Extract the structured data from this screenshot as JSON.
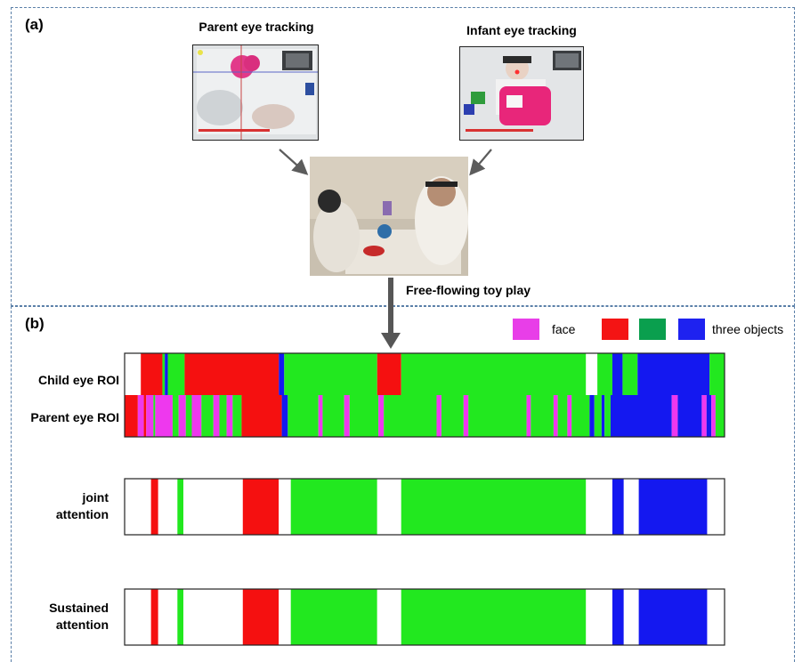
{
  "panels": {
    "a_label": "(a)",
    "b_label": "(b)"
  },
  "photos": {
    "parent_title": "Parent eye tracking",
    "infant_title": "Infant eye tracking",
    "caption": "Free-flowing toy play"
  },
  "legend": {
    "items": [
      {
        "label": "face",
        "color": "#e83ee8"
      },
      {
        "label": "",
        "color": "#f41414"
      },
      {
        "label": "",
        "color": "#0a9f4e"
      },
      {
        "label": "three objects",
        "color": "#1e22f0"
      }
    ]
  },
  "colors": {
    "face": "#ee38ee",
    "red": "#f51010",
    "green": "#22e81f",
    "blue": "#1418f0",
    "white": "#ffffff"
  },
  "rows": {
    "child": "Child eye ROI",
    "parent": "Parent eye ROI",
    "joint": [
      "joint",
      "attention"
    ],
    "sustained": [
      "Sustained",
      "attention"
    ]
  },
  "timeline_data": {
    "child_eye_roi": [
      [
        "white",
        0.0,
        0.027
      ],
      [
        "red",
        0.027,
        0.063
      ],
      [
        "green",
        0.063,
        0.067
      ],
      [
        "blue",
        0.067,
        0.072
      ],
      [
        "green",
        0.072,
        0.1
      ],
      [
        "red",
        0.1,
        0.257
      ],
      [
        "blue",
        0.257,
        0.266
      ],
      [
        "green",
        0.266,
        0.421
      ],
      [
        "red",
        0.421,
        0.461
      ],
      [
        "green",
        0.461,
        0.769
      ],
      [
        "white",
        0.769,
        0.788
      ],
      [
        "green",
        0.788,
        0.813
      ],
      [
        "blue",
        0.813,
        0.83
      ],
      [
        "green",
        0.83,
        0.855
      ],
      [
        "blue",
        0.855,
        0.975
      ],
      [
        "green",
        0.975,
        1.0
      ]
    ],
    "parent_eye_roi": [
      [
        "red",
        0.0,
        0.022
      ],
      [
        "face",
        0.022,
        0.032
      ],
      [
        "red",
        0.032,
        0.036
      ],
      [
        "face",
        0.036,
        0.048
      ],
      [
        "green",
        0.048,
        0.051
      ],
      [
        "face",
        0.051,
        0.08
      ],
      [
        "green",
        0.08,
        0.09
      ],
      [
        "face",
        0.09,
        0.102
      ],
      [
        "green",
        0.102,
        0.112
      ],
      [
        "face",
        0.112,
        0.128
      ],
      [
        "green",
        0.128,
        0.148
      ],
      [
        "face",
        0.148,
        0.158
      ],
      [
        "green",
        0.158,
        0.17
      ],
      [
        "face",
        0.17,
        0.18
      ],
      [
        "green",
        0.18,
        0.195
      ],
      [
        "red",
        0.195,
        0.262
      ],
      [
        "blue",
        0.262,
        0.272
      ],
      [
        "green",
        0.272,
        0.323
      ],
      [
        "face",
        0.323,
        0.33
      ],
      [
        "green",
        0.33,
        0.366
      ],
      [
        "face",
        0.366,
        0.375
      ],
      [
        "green",
        0.375,
        0.423
      ],
      [
        "face",
        0.423,
        0.432
      ],
      [
        "green",
        0.432,
        0.52
      ],
      [
        "face",
        0.52,
        0.528
      ],
      [
        "green",
        0.528,
        0.565
      ],
      [
        "face",
        0.565,
        0.573
      ],
      [
        "green",
        0.573,
        0.67
      ],
      [
        "face",
        0.67,
        0.677
      ],
      [
        "green",
        0.677,
        0.715
      ],
      [
        "face",
        0.715,
        0.722
      ],
      [
        "green",
        0.722,
        0.738
      ],
      [
        "face",
        0.738,
        0.745
      ],
      [
        "green",
        0.745,
        0.775
      ],
      [
        "blue",
        0.775,
        0.783
      ],
      [
        "green",
        0.783,
        0.795
      ],
      [
        "blue",
        0.795,
        0.8
      ],
      [
        "green",
        0.8,
        0.81
      ],
      [
        "blue",
        0.81,
        0.912
      ],
      [
        "face",
        0.912,
        0.922
      ],
      [
        "blue",
        0.922,
        0.962
      ],
      [
        "face",
        0.962,
        0.97
      ],
      [
        "blue",
        0.97,
        0.978
      ],
      [
        "face",
        0.978,
        0.985
      ],
      [
        "green",
        0.985,
        1.0
      ]
    ],
    "joint_attention": [
      [
        "white",
        0.0,
        0.044
      ],
      [
        "red",
        0.044,
        0.056
      ],
      [
        "white",
        0.056,
        0.088
      ],
      [
        "green",
        0.088,
        0.098
      ],
      [
        "white",
        0.098,
        0.197
      ],
      [
        "red",
        0.197,
        0.257
      ],
      [
        "white",
        0.257,
        0.277
      ],
      [
        "green",
        0.277,
        0.421
      ],
      [
        "white",
        0.421,
        0.461
      ],
      [
        "green",
        0.461,
        0.769
      ],
      [
        "white",
        0.769,
        0.813
      ],
      [
        "blue",
        0.813,
        0.832
      ],
      [
        "white",
        0.832,
        0.857
      ],
      [
        "blue",
        0.857,
        0.971
      ],
      [
        "white",
        0.971,
        1.0
      ]
    ],
    "sustained_attention": [
      [
        "white",
        0.0,
        0.044
      ],
      [
        "red",
        0.044,
        0.056
      ],
      [
        "white",
        0.056,
        0.088
      ],
      [
        "green",
        0.088,
        0.098
      ],
      [
        "white",
        0.098,
        0.197
      ],
      [
        "red",
        0.197,
        0.257
      ],
      [
        "white",
        0.257,
        0.277
      ],
      [
        "green",
        0.277,
        0.421
      ],
      [
        "white",
        0.421,
        0.461
      ],
      [
        "green",
        0.461,
        0.769
      ],
      [
        "white",
        0.769,
        0.813
      ],
      [
        "blue",
        0.813,
        0.832
      ],
      [
        "white",
        0.832,
        0.857
      ],
      [
        "blue",
        0.857,
        0.971
      ],
      [
        "white",
        0.971,
        1.0
      ]
    ]
  }
}
